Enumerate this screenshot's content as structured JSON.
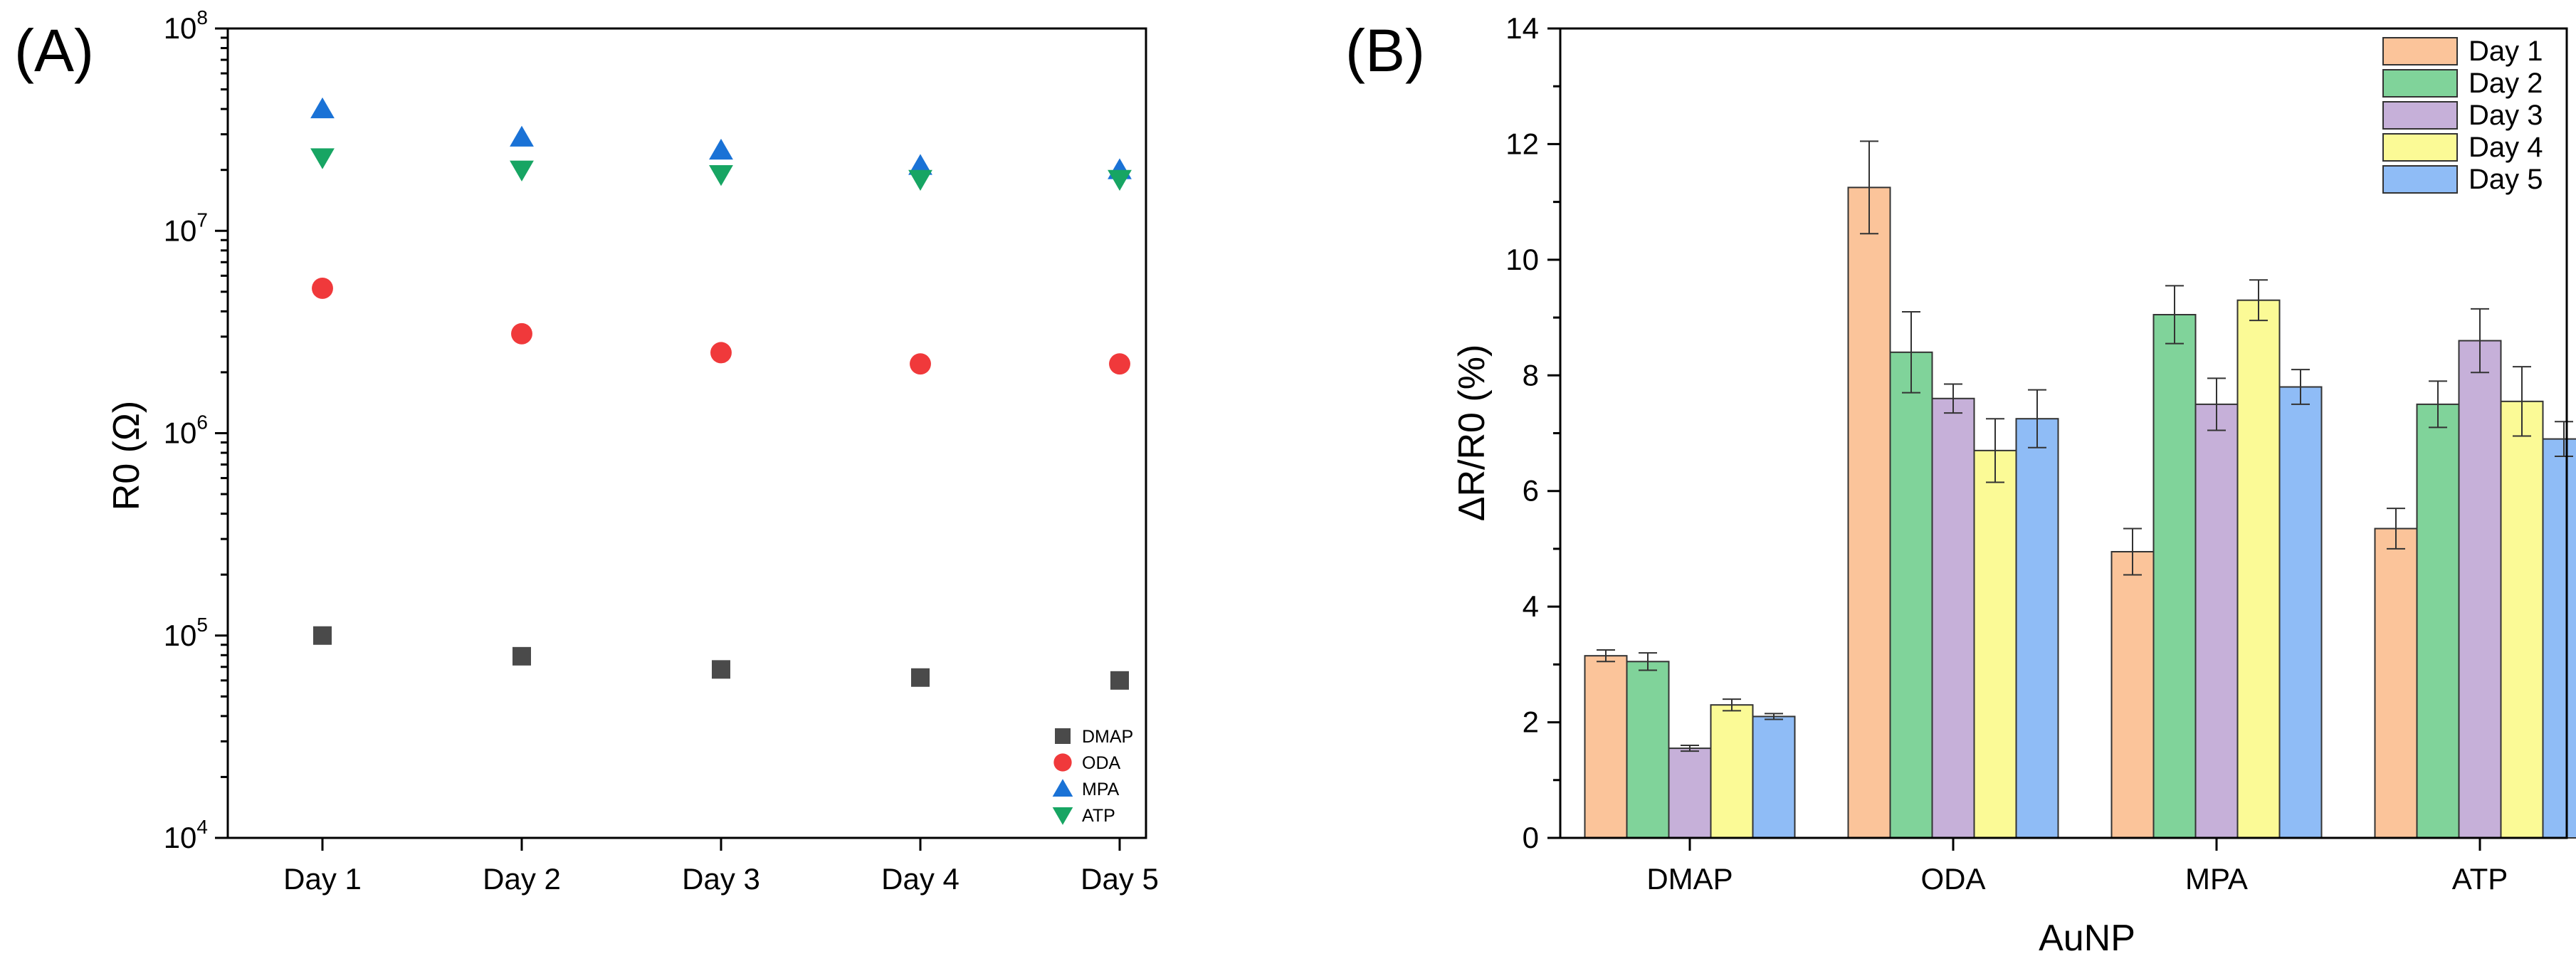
{
  "chart_data": [
    {
      "panel": "(A)",
      "type": "scatter",
      "yscale": "log",
      "ylabel": "R0 (Ω)",
      "xlabel": "",
      "categories": [
        "Day 1",
        "Day 2",
        "Day 3",
        "Day 4",
        "Day 5"
      ],
      "ylim": [
        10000,
        100000000
      ],
      "y_ticks": [
        {
          "value": 10000,
          "base": "10",
          "exp": "4"
        },
        {
          "value": 100000,
          "base": "10",
          "exp": "5"
        },
        {
          "value": 1000000,
          "base": "10",
          "exp": "6"
        },
        {
          "value": 10000000,
          "base": "10",
          "exp": "7"
        },
        {
          "value": 100000000,
          "base": "10",
          "exp": "8"
        }
      ],
      "legend_position": "bottom-right",
      "series": [
        {
          "name": "DMAP",
          "marker": "square",
          "color": "#4a4a4a",
          "values": [
            100000,
            79000,
            68000,
            62000,
            60000
          ]
        },
        {
          "name": "ODA",
          "marker": "circle",
          "color": "#f0393b",
          "values": [
            5200000,
            3100000,
            2500000,
            2200000,
            2200000
          ]
        },
        {
          "name": "MPA",
          "marker": "triangle-up",
          "color": "#1a72d6",
          "values": [
            40000000,
            29000000,
            25000000,
            21000000,
            20000000
          ]
        },
        {
          "name": "ATP",
          "marker": "triangle-down",
          "color": "#17a563",
          "values": [
            23000000,
            20000000,
            19000000,
            18000000,
            18000000
          ]
        }
      ]
    },
    {
      "panel": "(B)",
      "type": "bar",
      "ylabel": "ΔR/R0 (%)",
      "xlabel": "AuNP",
      "categories": [
        "DMAP",
        "ODA",
        "MPA",
        "ATP"
      ],
      "ylim": [
        0,
        14
      ],
      "y_ticks": [
        0,
        2,
        4,
        6,
        8,
        10,
        12,
        14
      ],
      "legend_position": "top-right",
      "series": [
        {
          "name": "Day 1",
          "color": "#fbc49a",
          "values": [
            3.15,
            11.25,
            4.95,
            5.35
          ],
          "errors": [
            0.1,
            0.8,
            0.4,
            0.35
          ]
        },
        {
          "name": "Day 2",
          "color": "#80d39a",
          "values": [
            3.05,
            8.4,
            9.05,
            7.5
          ],
          "errors": [
            0.15,
            0.7,
            0.5,
            0.4
          ]
        },
        {
          "name": "Day 3",
          "color": "#c6b0d9",
          "values": [
            1.55,
            7.6,
            7.5,
            8.6
          ],
          "errors": [
            0.05,
            0.25,
            0.45,
            0.55
          ]
        },
        {
          "name": "Day 4",
          "color": "#fbfa96",
          "values": [
            2.3,
            6.7,
            9.3,
            7.55
          ],
          "errors": [
            0.1,
            0.55,
            0.35,
            0.6
          ]
        },
        {
          "name": "Day 5",
          "color": "#8fbcf6",
          "values": [
            2.1,
            7.25,
            7.8,
            6.9
          ],
          "errors": [
            0.05,
            0.5,
            0.3,
            0.3
          ]
        }
      ]
    }
  ]
}
